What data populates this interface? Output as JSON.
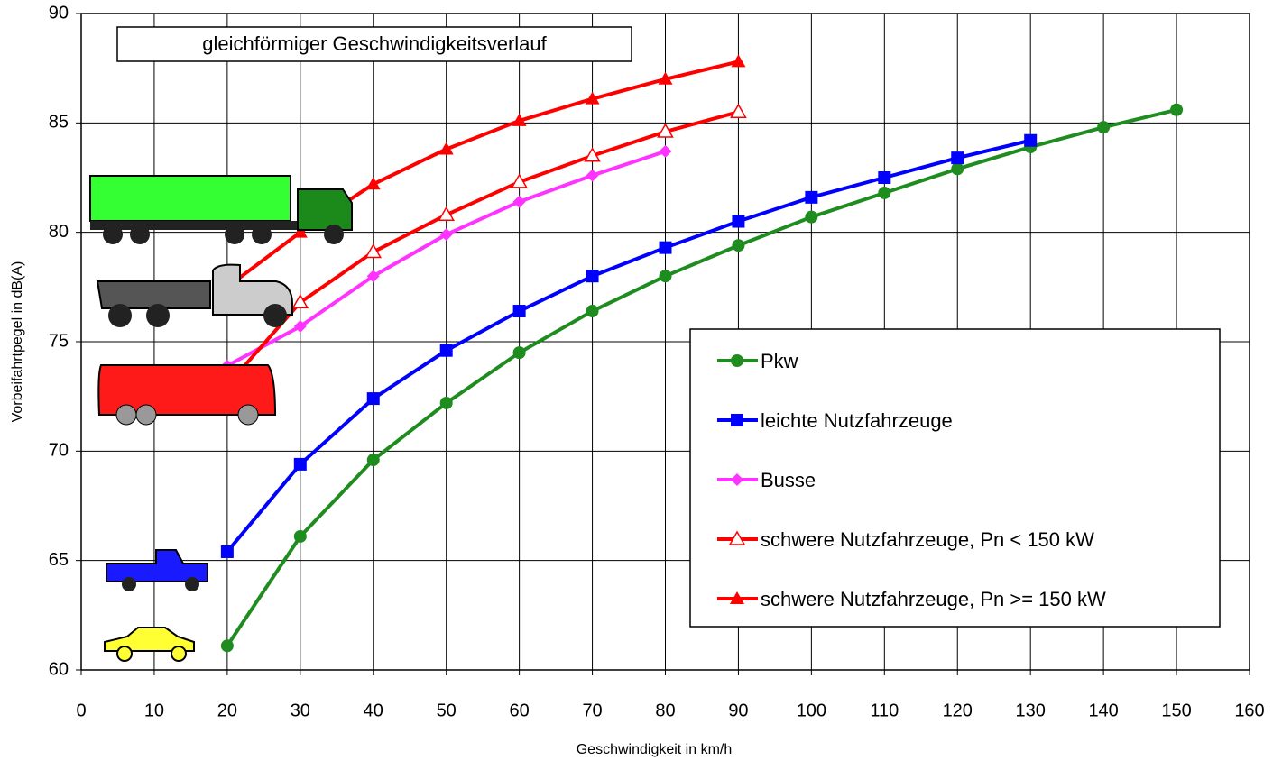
{
  "chart_data": {
    "type": "line",
    "title": "gleichförmiger Geschwindigkeitsverlauf",
    "x_label": "Geschwindigkeit in km/h",
    "y_label": "Vorbeifahrtpegel in dB(A)",
    "x": [
      20,
      30,
      40,
      50,
      60,
      70,
      80,
      90,
      100,
      110,
      120,
      130,
      140,
      150
    ],
    "series": [
      {
        "name": "Pkw",
        "color": "#1e8c1e",
        "marker": "circle",
        "values": [
          61.1,
          66.1,
          69.6,
          72.2,
          74.5,
          76.4,
          78.0,
          79.4,
          80.7,
          81.8,
          82.9,
          83.9,
          84.8,
          85.6
        ]
      },
      {
        "name": "leichte Nutzfahrzeuge",
        "color": "#0000ff",
        "marker": "square",
        "values": [
          65.4,
          69.4,
          72.4,
          74.6,
          76.4,
          78.0,
          79.3,
          80.5,
          81.6,
          82.5,
          83.4,
          84.2,
          null,
          null
        ]
      },
      {
        "name": "Busse",
        "color": "#ff33ff",
        "marker": "diamond",
        "values": [
          73.9,
          75.7,
          78.0,
          79.9,
          81.4,
          82.6,
          83.7,
          null,
          null,
          null,
          null,
          null,
          null,
          null
        ]
      },
      {
        "name": "schwere Nutzfahrzeuge, Pn < 150 kW",
        "color": "#ff0000",
        "marker": "triangle-open",
        "values": [
          73.0,
          76.8,
          79.1,
          80.8,
          82.3,
          83.5,
          84.6,
          85.5,
          null,
          null,
          null,
          null,
          null,
          null
        ]
      },
      {
        "name": "schwere Nutzfahrzeuge, Pn >= 150 kW",
        "color": "#ff0000",
        "marker": "triangle",
        "values": [
          77.5,
          80.0,
          82.2,
          83.8,
          85.1,
          86.1,
          87.0,
          87.8,
          null,
          null,
          null,
          null,
          null,
          null
        ]
      }
    ],
    "xlim": [
      0,
      160
    ],
    "xticks": [
      0,
      10,
      20,
      30,
      40,
      50,
      60,
      70,
      80,
      90,
      100,
      110,
      120,
      130,
      140,
      150,
      160
    ],
    "ylim": [
      60,
      90
    ],
    "yticks": [
      60,
      65,
      70,
      75,
      80,
      85,
      90
    ],
    "grid": true
  }
}
